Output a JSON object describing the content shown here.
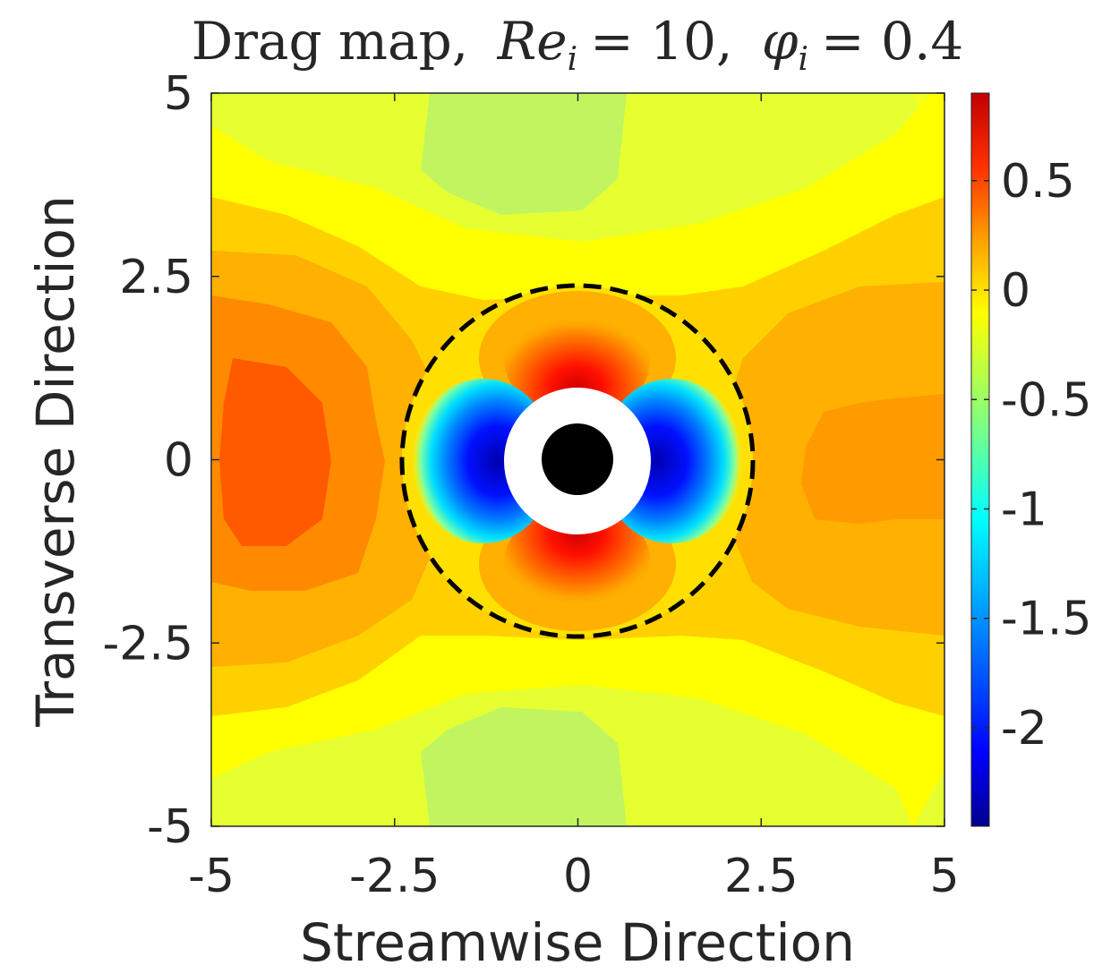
{
  "chart_data": {
    "type": "heatmap",
    "title": {
      "prefix": "Drag map,",
      "re_symbol": "Re",
      "re_subscript": "i",
      "re_value": "= 10,",
      "phi_symbol": "φ",
      "phi_subscript": "i",
      "phi_value": "= 0.4"
    },
    "xlabel": "Streamwise Direction",
    "ylabel": "Transverse Direction",
    "xlim": [
      -5,
      5
    ],
    "ylim": [
      -5,
      5
    ],
    "xticks": [
      -5,
      -2.5,
      0,
      2.5,
      5
    ],
    "yticks": [
      -5,
      -2.5,
      0,
      2.5,
      5
    ],
    "xtick_labels": [
      "-5",
      "-2.5",
      "0",
      "2.5",
      "5"
    ],
    "ytick_labels": [
      "-5",
      "-2.5",
      "0",
      "2.5",
      "5"
    ],
    "colorbar": {
      "range": [
        -2.45,
        0.9
      ],
      "ticks": [
        0.5,
        0,
        -0.5,
        -1,
        -1.5,
        -2
      ],
      "tick_labels": [
        "0.5",
        "0",
        "-0.5",
        "-1",
        "-1.5",
        "-2"
      ],
      "colormap": "jet"
    },
    "particle": {
      "center": [
        0,
        0
      ],
      "radius": 0.5,
      "color": "#000000"
    },
    "excluded_region": {
      "center": [
        0,
        0
      ],
      "radius": 1.0,
      "color": "#ffffff"
    },
    "dashed_circle": {
      "center": [
        0,
        0
      ],
      "radius": 2.4,
      "style": "dashed",
      "color": "#000000"
    },
    "field_description": "negative drag (blue) upstream/downstream of particle along streamwise axis, positive (red) above/below; orange lobes far upstream and downstream"
  }
}
